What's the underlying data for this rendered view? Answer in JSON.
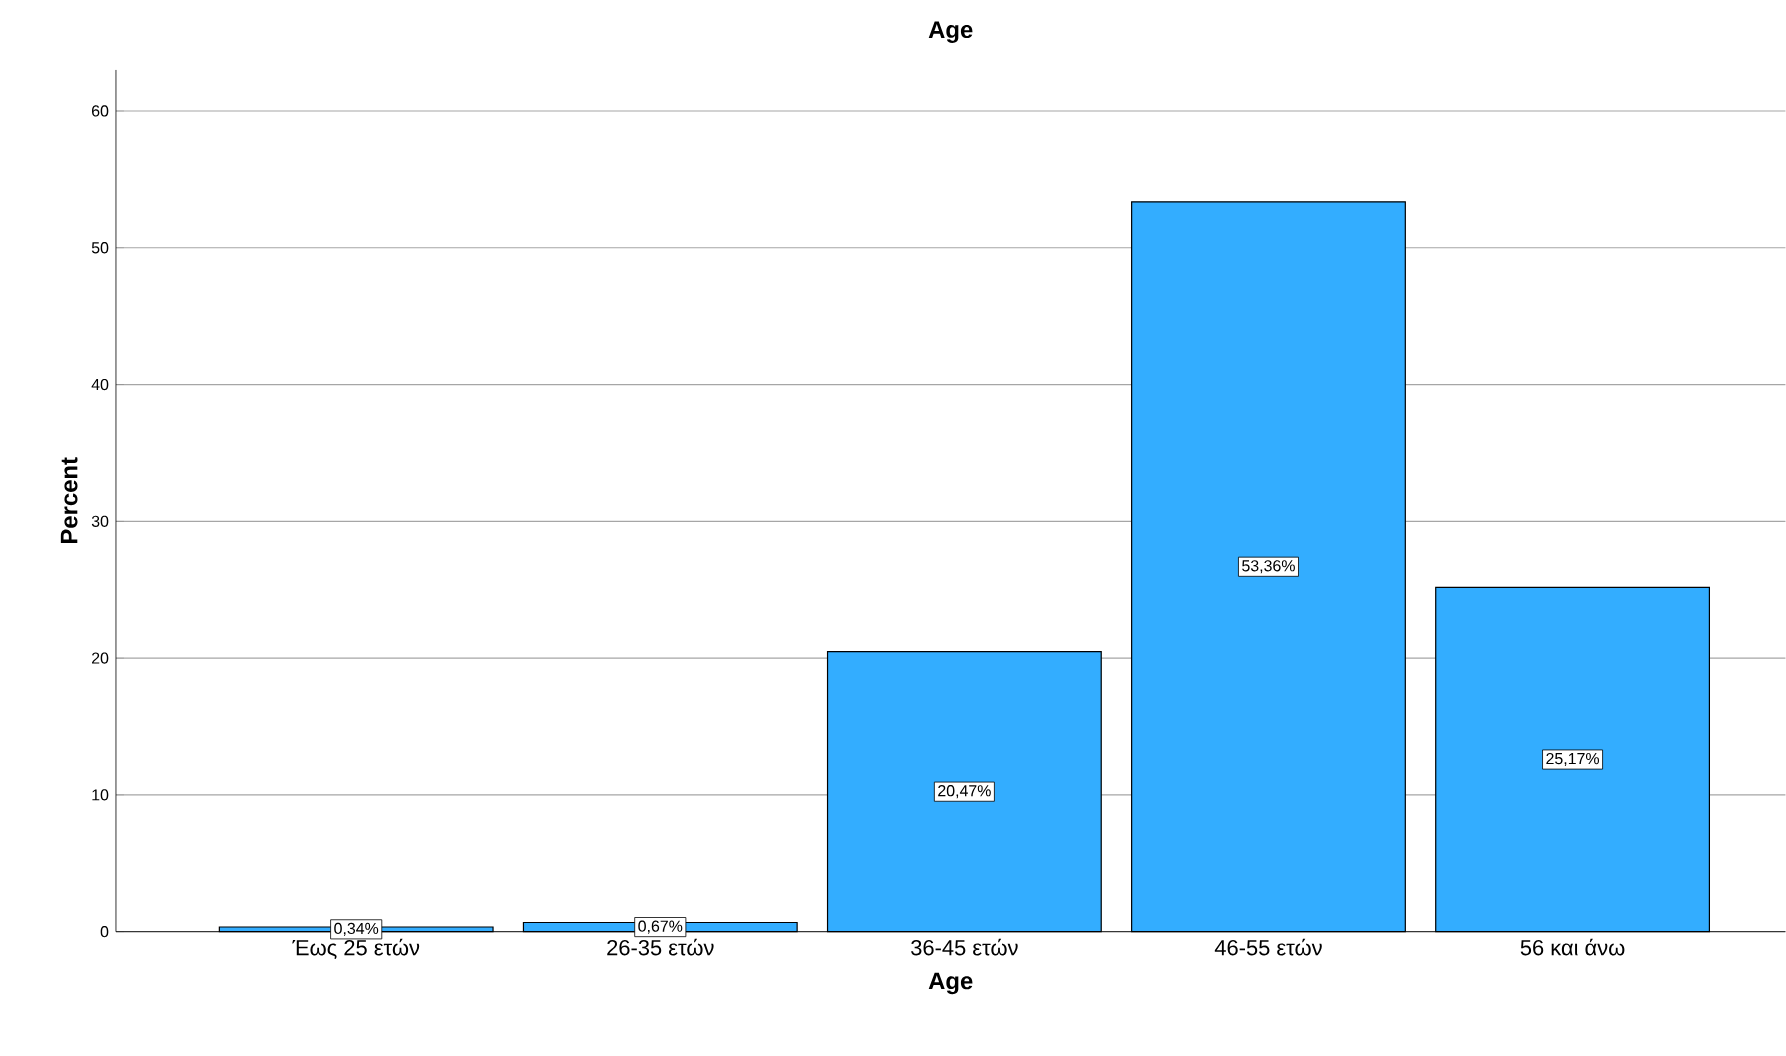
{
  "chart_data": {
    "type": "bar",
    "title": "Age",
    "xlabel": "Age",
    "ylabel": "Percent",
    "categories": [
      "Έως 25 ετών",
      "26-35 ετών",
      "36-45 ετών",
      "46-55 ετών",
      "56 και άνω"
    ],
    "values": [
      0.34,
      0.67,
      20.47,
      53.36,
      25.17
    ],
    "value_labels": [
      "0,34%",
      "0,67%",
      "20,47%",
      "53,36%",
      "25,17%"
    ],
    "color": "#33adff",
    "ylim": [
      0,
      63
    ],
    "yticks": [
      0,
      10,
      20,
      30,
      40,
      50,
      60
    ],
    "grid": "y"
  }
}
